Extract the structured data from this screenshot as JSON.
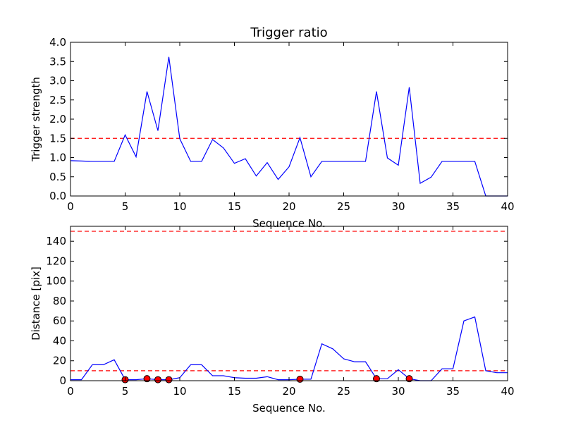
{
  "chart_data": [
    {
      "type": "line",
      "title": "Trigger ratio",
      "xlabel": "Sequence No.",
      "ylabel": "Trigger strength",
      "xlim": [
        0,
        40
      ],
      "ylim": [
        0,
        4.0
      ],
      "xticks": [
        "0",
        "5",
        "10",
        "15",
        "20",
        "25",
        "30",
        "35",
        "40"
      ],
      "yticks": [
        "0.0",
        "0.5",
        "1.0",
        "1.5",
        "2.0",
        "2.5",
        "3.0",
        "3.5",
        "4.0"
      ],
      "grid": false,
      "colors": {
        "line": "#0000ff",
        "threshold": "#ff0000"
      },
      "threshold": 1.5,
      "series": [
        {
          "x": [
            0,
            1,
            2,
            3,
            4,
            5,
            6,
            7,
            8,
            9,
            10,
            11,
            12,
            13,
            14,
            15,
            16,
            17,
            18,
            19,
            20,
            21,
            22,
            23,
            24,
            25,
            26,
            27,
            28,
            29,
            30,
            31,
            32,
            33,
            34,
            35,
            36,
            37,
            38,
            39,
            40
          ],
          "values": [
            0.92,
            0.91,
            0.9,
            0.9,
            0.9,
            1.59,
            1.02,
            2.72,
            1.7,
            3.62,
            1.49,
            0.9,
            0.9,
            1.47,
            1.25,
            0.85,
            0.97,
            0.52,
            0.87,
            0.43,
            0.76,
            1.52,
            0.5,
            0.9,
            0.9,
            0.9,
            0.9,
            0.9,
            2.72,
            0.99,
            0.8,
            2.83,
            0.33,
            0.49,
            0.9,
            0.9,
            0.9,
            0.9,
            0.0,
            0.0,
            0.0
          ]
        }
      ]
    },
    {
      "type": "line",
      "xlabel": "Sequence No.",
      "ylabel": "Distance [pix]",
      "xlim": [
        0,
        40
      ],
      "ylim": [
        0,
        155
      ],
      "xticks": [
        "0",
        "5",
        "10",
        "15",
        "20",
        "25",
        "30",
        "35",
        "40"
      ],
      "yticks": [
        "0",
        "20",
        "40",
        "60",
        "80",
        "100",
        "120",
        "140"
      ],
      "grid": false,
      "colors": {
        "line": "#0000ff",
        "threshold": "#ff0000",
        "markers": "#ff0000"
      },
      "thresholds": [
        10,
        150
      ],
      "series": [
        {
          "x": [
            0,
            1,
            2,
            3,
            4,
            5,
            6,
            7,
            8,
            9,
            10,
            11,
            12,
            13,
            14,
            15,
            16,
            17,
            18,
            19,
            20,
            21,
            22,
            23,
            24,
            25,
            26,
            27,
            28,
            29,
            30,
            31,
            32,
            33,
            34,
            35,
            36,
            37,
            38,
            39,
            40
          ],
          "values": [
            1,
            1,
            16,
            16,
            21,
            1,
            1,
            2,
            1,
            1,
            3,
            16,
            16,
            5,
            5,
            3,
            2.5,
            2.5,
            4,
            1,
            1,
            1.5,
            1.5,
            37,
            32,
            22,
            19,
            19,
            2,
            2,
            11,
            2,
            0,
            0,
            12,
            12,
            60,
            64,
            10,
            8,
            8
          ]
        }
      ],
      "markers": {
        "x": [
          5,
          7,
          8,
          9,
          21,
          28,
          31
        ],
        "values": [
          1,
          2,
          1,
          1,
          1.5,
          2,
          2
        ]
      }
    }
  ]
}
